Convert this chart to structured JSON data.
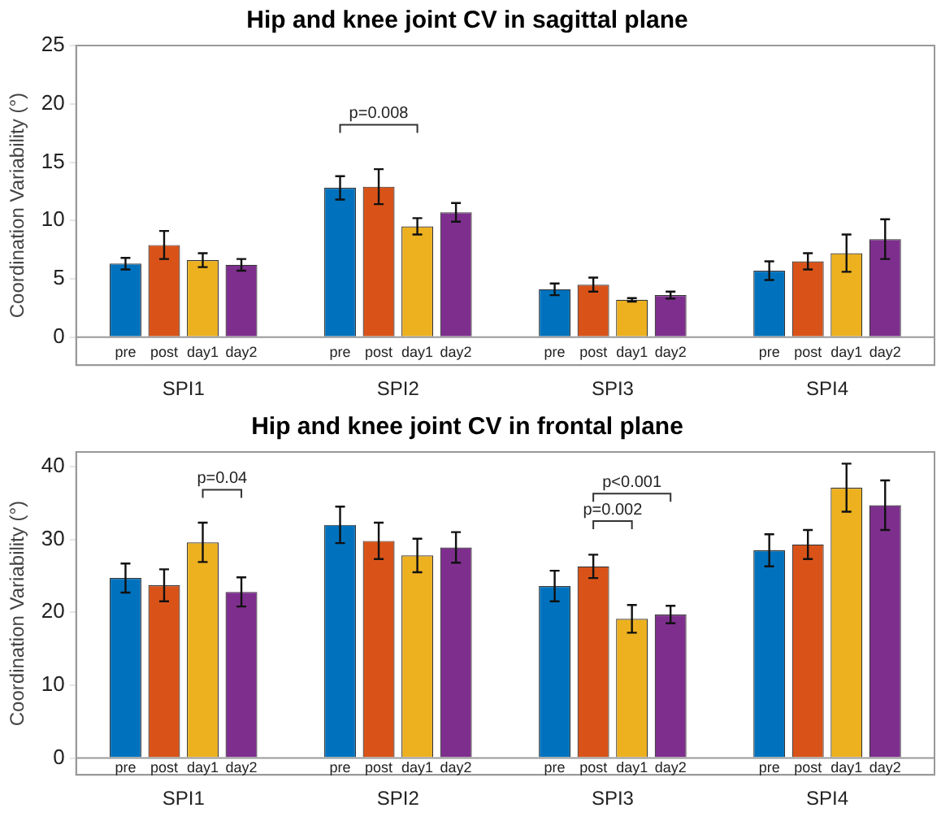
{
  "chart_data": [
    {
      "type": "bar",
      "title": "Hip and knee joint CV in sagittal plane",
      "ylabel": "Coordination Variability (°)",
      "categories": [
        "SPI1",
        "SPI2",
        "SPI3",
        "SPI4"
      ],
      "series": [
        {
          "name": "pre",
          "color": "#0072bd",
          "values": [
            6.3,
            12.8,
            4.1,
            5.7
          ],
          "errors": [
            0.5,
            1.0,
            0.5,
            0.8
          ]
        },
        {
          "name": "post",
          "color": "#d95319",
          "values": [
            7.9,
            12.9,
            4.5,
            6.5
          ],
          "errors": [
            1.2,
            1.5,
            0.6,
            0.7
          ]
        },
        {
          "name": "day1",
          "color": "#edb120",
          "values": [
            6.6,
            9.5,
            3.2,
            7.2
          ],
          "errors": [
            0.6,
            0.7,
            0.15,
            1.6
          ]
        },
        {
          "name": "day2",
          "color": "#7e2f8e",
          "values": [
            6.2,
            10.7,
            3.6,
            8.4
          ],
          "errors": [
            0.5,
            0.8,
            0.3,
            1.7
          ]
        }
      ],
      "ylim": [
        -2.4,
        25
      ],
      "yticks": [
        0,
        5,
        10,
        15,
        20,
        25
      ],
      "grid": false,
      "legend": false,
      "ref_lines": [
        {
          "axis": "y",
          "value": 0
        }
      ],
      "annotations": [
        "p=0.008"
      ]
    },
    {
      "type": "bar",
      "title": "Hip and knee joint CV in frontal plane",
      "ylabel": "Coordination Variability (°)",
      "categories": [
        "SPI1",
        "SPI2",
        "SPI3",
        "SPI4"
      ],
      "series": [
        {
          "name": "pre",
          "color": "#0072bd",
          "values": [
            24.7,
            32.0,
            23.6,
            28.5
          ],
          "errors": [
            2.0,
            2.5,
            2.1,
            2.2
          ]
        },
        {
          "name": "post",
          "color": "#d95319",
          "values": [
            23.7,
            29.8,
            26.3,
            29.3
          ],
          "errors": [
            2.2,
            2.5,
            1.6,
            2.0
          ]
        },
        {
          "name": "day1",
          "color": "#edb120",
          "values": [
            29.6,
            27.8,
            19.1,
            37.1
          ],
          "errors": [
            2.7,
            2.3,
            1.9,
            3.3
          ]
        },
        {
          "name": "day2",
          "color": "#7e2f8e",
          "values": [
            22.8,
            28.9,
            19.7,
            34.7
          ],
          "errors": [
            2.0,
            2.1,
            1.2,
            3.4
          ]
        }
      ],
      "ylim": [
        -2.3,
        42
      ],
      "yticks": [
        0,
        10,
        20,
        30,
        40
      ],
      "grid": false,
      "legend": false,
      "ref_lines": [
        {
          "axis": "y",
          "value": 0
        }
      ],
      "annotations": [
        "p=0.04",
        "p<0.001",
        "p=0.002"
      ]
    }
  ]
}
